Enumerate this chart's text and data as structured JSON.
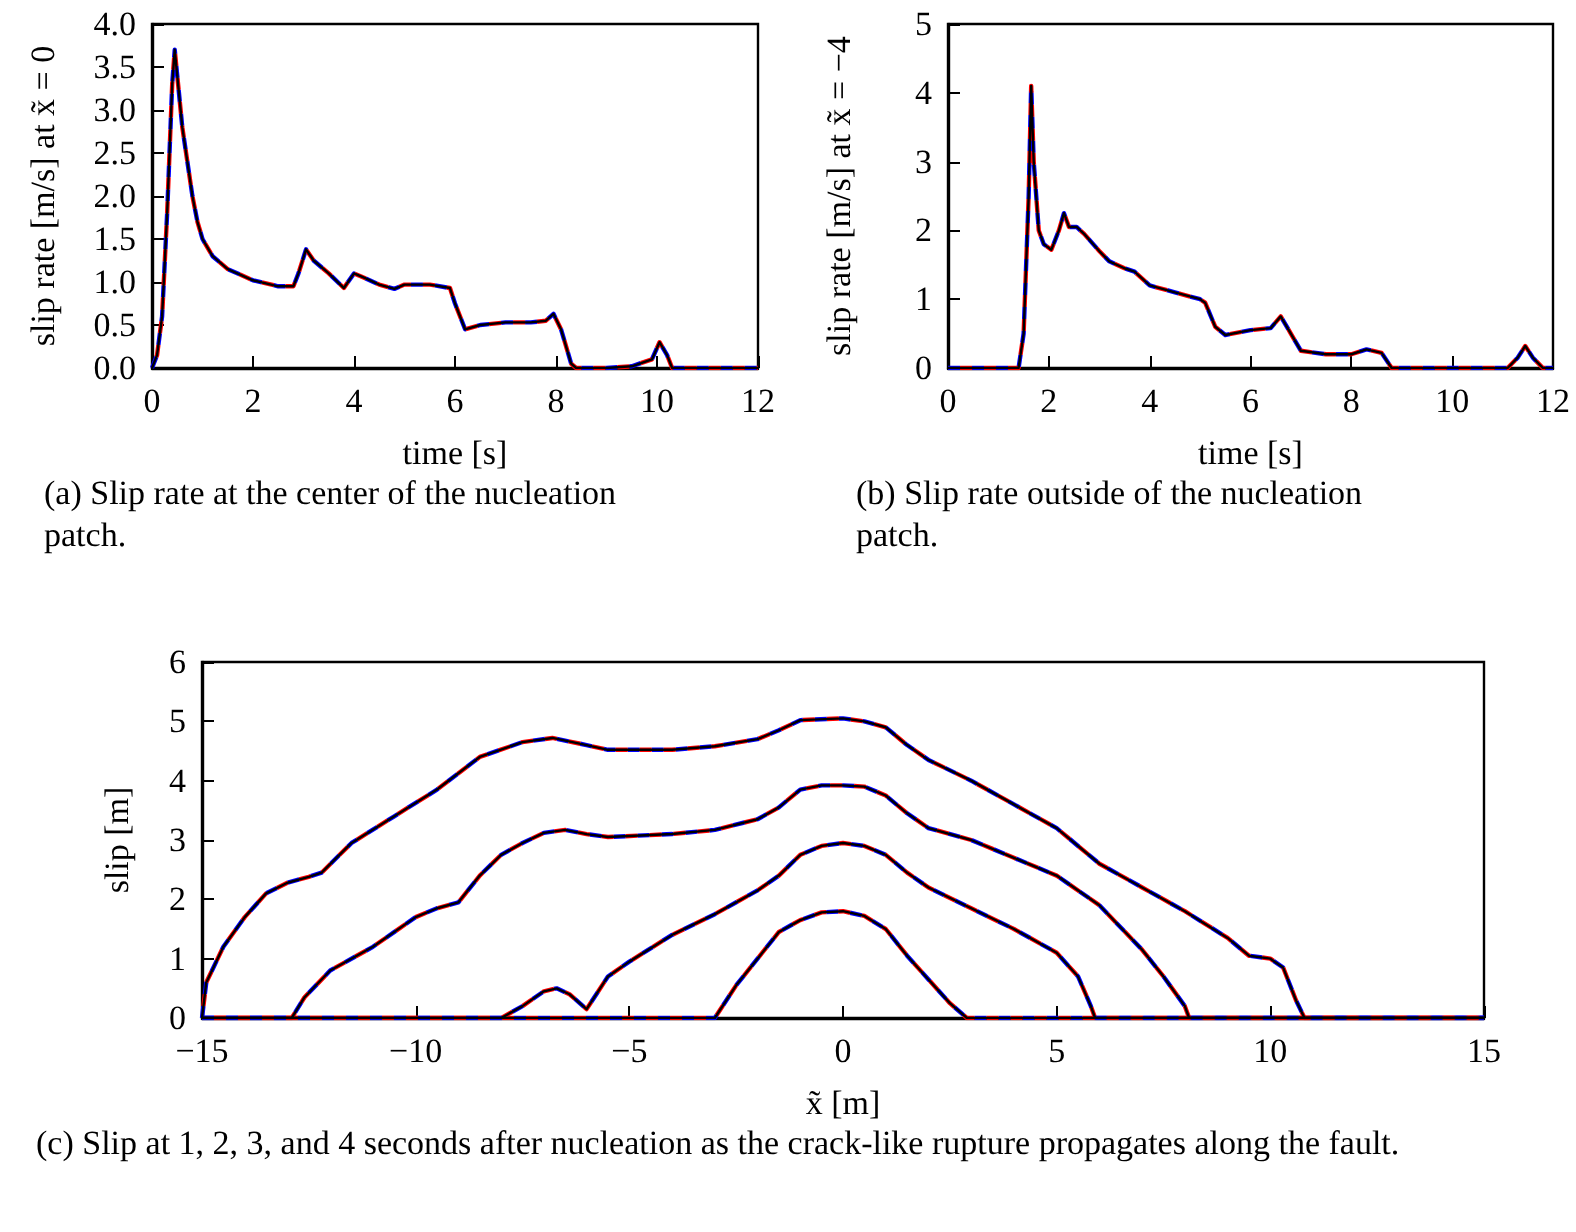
{
  "chart_data": [
    {
      "type": "line",
      "xlabel": "time [s]",
      "ylabel": "slip rate [m/s] at x̃ = 0",
      "annotations": [
        "(a) Slip rate at the center of the nucleation patch."
      ],
      "xlim": [
        0,
        12
      ],
      "xticks": [
        0,
        2,
        4,
        6,
        8,
        10,
        12
      ],
      "ylim": [
        0,
        4
      ],
      "yticks": [
        {
          "value": 0,
          "label": "0.0"
        },
        {
          "value": 0.5,
          "label": "0.5"
        },
        {
          "value": 1,
          "label": "1.0"
        },
        {
          "value": 1.5,
          "label": "1.5"
        },
        {
          "value": 2,
          "label": "2.0"
        },
        {
          "value": 2.5,
          "label": "2.5"
        },
        {
          "value": 3,
          "label": "3.0"
        },
        {
          "value": 3.5,
          "label": "3.5"
        },
        {
          "value": 4,
          "label": "4.0"
        }
      ],
      "grid": false,
      "marker": "none",
      "x": [
        0,
        0.1,
        0.2,
        0.3,
        0.4,
        0.45,
        0.5,
        0.6,
        0.7,
        0.8,
        0.9,
        1.0,
        1.2,
        1.5,
        2.0,
        2.5,
        2.8,
        2.9,
        3.05,
        3.2,
        3.5,
        3.8,
        4.0,
        4.2,
        4.5,
        4.8,
        5.0,
        5.5,
        5.9,
        6.0,
        6.2,
        6.5,
        7.0,
        7.5,
        7.8,
        7.95,
        8.1,
        8.3,
        8.4,
        9.0,
        9.5,
        9.9,
        10.05,
        10.2,
        10.3,
        12
      ],
      "series": [
        {
          "color": "#0000ff",
          "line_style": "dashed",
          "values": [
            0,
            0.15,
            0.6,
            1.8,
            3.3,
            3.7,
            3.4,
            2.8,
            2.4,
            2.0,
            1.7,
            1.5,
            1.3,
            1.15,
            1.02,
            0.95,
            0.95,
            1.1,
            1.38,
            1.25,
            1.1,
            0.93,
            1.1,
            1.05,
            0.97,
            0.92,
            0.97,
            0.97,
            0.93,
            0.75,
            0.45,
            0.5,
            0.53,
            0.53,
            0.55,
            0.63,
            0.45,
            0.05,
            0,
            0,
            0.02,
            0.1,
            0.3,
            0.15,
            0,
            0
          ]
        },
        {
          "color": "#ff0000",
          "line_style": "dashed",
          "values": [
            0,
            0.15,
            0.6,
            1.8,
            3.3,
            3.7,
            3.4,
            2.8,
            2.4,
            2.0,
            1.7,
            1.5,
            1.3,
            1.15,
            1.02,
            0.95,
            0.95,
            1.1,
            1.38,
            1.25,
            1.1,
            0.93,
            1.1,
            1.05,
            0.97,
            0.92,
            0.97,
            0.97,
            0.93,
            0.75,
            0.45,
            0.5,
            0.53,
            0.53,
            0.55,
            0.63,
            0.45,
            0.05,
            0,
            0,
            0.02,
            0.1,
            0.3,
            0.15,
            0,
            0
          ]
        },
        {
          "color": "#000000",
          "line_style": "solid",
          "values": [
            0,
            0.15,
            0.6,
            1.8,
            3.3,
            3.7,
            3.4,
            2.8,
            2.4,
            2.0,
            1.7,
            1.5,
            1.3,
            1.15,
            1.02,
            0.95,
            0.95,
            1.1,
            1.38,
            1.25,
            1.1,
            0.93,
            1.1,
            1.05,
            0.97,
            0.92,
            0.97,
            0.97,
            0.93,
            0.75,
            0.45,
            0.5,
            0.53,
            0.53,
            0.55,
            0.63,
            0.45,
            0.05,
            0,
            0,
            0.02,
            0.1,
            0.3,
            0.15,
            0,
            0
          ]
        }
      ]
    },
    {
      "type": "line",
      "xlabel": "time [s]",
      "ylabel": "slip rate [m/s] at x̃ = −4",
      "annotations": [
        "(b) Slip rate outside of the nucleation patch."
      ],
      "xlim": [
        0,
        12
      ],
      "xticks": [
        0,
        2,
        4,
        6,
        8,
        10,
        12
      ],
      "ylim": [
        0,
        5
      ],
      "yticks": [
        0,
        1,
        2,
        3,
        4,
        5
      ],
      "grid": false,
      "marker": "none",
      "x": [
        0,
        1.4,
        1.5,
        1.6,
        1.65,
        1.7,
        1.8,
        1.9,
        2.05,
        2.2,
        2.3,
        2.4,
        2.55,
        2.7,
        3.0,
        3.2,
        3.5,
        3.7,
        4.0,
        4.5,
        5.0,
        5.1,
        5.3,
        5.5,
        6.0,
        6.4,
        6.6,
        6.8,
        7.0,
        7.5,
        8.0,
        8.3,
        8.6,
        8.8,
        11.1,
        11.3,
        11.45,
        11.6,
        11.8,
        12
      ],
      "series": [
        {
          "color": "#0000ff",
          "line_style": "dashed",
          "values": [
            0,
            0,
            0.5,
            2.5,
            4.1,
            3.0,
            2.0,
            1.8,
            1.72,
            2.0,
            2.25,
            2.05,
            2.05,
            1.95,
            1.7,
            1.55,
            1.45,
            1.4,
            1.2,
            1.1,
            1.0,
            0.95,
            0.6,
            0.48,
            0.55,
            0.58,
            0.75,
            0.5,
            0.25,
            0.2,
            0.2,
            0.27,
            0.22,
            0,
            0,
            0.15,
            0.32,
            0.15,
            0,
            0
          ]
        },
        {
          "color": "#ff0000",
          "line_style": "dashed",
          "values": [
            0,
            0,
            0.5,
            2.5,
            4.1,
            3.0,
            2.0,
            1.8,
            1.72,
            2.0,
            2.25,
            2.05,
            2.05,
            1.95,
            1.7,
            1.55,
            1.45,
            1.4,
            1.2,
            1.1,
            1.0,
            0.95,
            0.6,
            0.48,
            0.55,
            0.58,
            0.75,
            0.5,
            0.25,
            0.2,
            0.2,
            0.27,
            0.22,
            0,
            0,
            0.15,
            0.32,
            0.15,
            0,
            0
          ]
        },
        {
          "color": "#000000",
          "line_style": "solid",
          "values": [
            0,
            0,
            0.5,
            2.5,
            4.1,
            3.0,
            2.0,
            1.8,
            1.72,
            2.0,
            2.25,
            2.05,
            2.05,
            1.95,
            1.7,
            1.55,
            1.45,
            1.4,
            1.2,
            1.1,
            1.0,
            0.95,
            0.6,
            0.48,
            0.55,
            0.58,
            0.75,
            0.5,
            0.25,
            0.2,
            0.2,
            0.27,
            0.22,
            0,
            0,
            0.15,
            0.32,
            0.15,
            0,
            0
          ]
        }
      ]
    },
    {
      "type": "line",
      "xlabel": "x̃ [m]",
      "ylabel": "slip [m]",
      "annotations": [
        "(c) Slip at 1, 2, 3, and 4 seconds after nucleation as the crack-like rupture propagates along the fault."
      ],
      "xlim": [
        -15,
        15
      ],
      "xticks": [
        {
          "value": -15,
          "label": "−15"
        },
        {
          "value": -10,
          "label": "−10"
        },
        {
          "value": -5,
          "label": "−5"
        },
        0,
        5,
        10,
        15
      ],
      "ylim": [
        0,
        6
      ],
      "yticks": [
        0,
        1,
        2,
        3,
        4,
        5,
        6
      ],
      "grid": false,
      "marker": "none",
      "series": [
        {
          "color": "#0000ff",
          "line_style": "dashed",
          "x": [
            -15,
            -14.9,
            -14.5,
            -14,
            -13.5,
            -13,
            -12.5,
            -12.2,
            -11.5,
            -10.5,
            -9.5,
            -8.5,
            -7.5,
            -6.8,
            -6,
            -5.5,
            -4,
            -3,
            -2,
            -1.5,
            -1,
            0,
            0.5,
            1,
            1.5,
            2,
            3,
            4,
            5,
            6,
            7,
            8,
            9,
            9.5,
            10,
            10.3,
            10.6,
            10.8,
            15
          ],
          "values": [
            0,
            0.6,
            1.2,
            1.7,
            2.1,
            2.28,
            2.38,
            2.45,
            2.95,
            3.4,
            3.85,
            4.4,
            4.65,
            4.72,
            4.6,
            4.52,
            4.52,
            4.58,
            4.7,
            4.85,
            5.02,
            5.05,
            5.0,
            4.9,
            4.6,
            4.35,
            4.0,
            3.6,
            3.2,
            2.6,
            2.2,
            1.8,
            1.35,
            1.05,
            1.0,
            0.85,
            0.3,
            0,
            0
          ]
        },
        {
          "color": "#ff0000",
          "line_style": "dashed",
          "x": [
            -15,
            -14.9,
            -14.5,
            -14,
            -13.5,
            -13,
            -12.5,
            -12.2,
            -11.5,
            -10.5,
            -9.5,
            -8.5,
            -7.5,
            -6.8,
            -6,
            -5.5,
            -4,
            -3,
            -2,
            -1.5,
            -1,
            0,
            0.5,
            1,
            1.5,
            2,
            3,
            4,
            5,
            6,
            7,
            8,
            9,
            9.5,
            10,
            10.3,
            10.6,
            10.8,
            15
          ],
          "values": [
            0,
            0.6,
            1.2,
            1.7,
            2.1,
            2.28,
            2.38,
            2.45,
            2.95,
            3.4,
            3.85,
            4.4,
            4.65,
            4.72,
            4.6,
            4.52,
            4.52,
            4.58,
            4.7,
            4.85,
            5.02,
            5.05,
            5.0,
            4.9,
            4.6,
            4.35,
            4.0,
            3.6,
            3.2,
            2.6,
            2.2,
            1.8,
            1.35,
            1.05,
            1.0,
            0.85,
            0.3,
            0,
            0
          ]
        },
        {
          "color": "#000000",
          "line_style": "solid",
          "x": [
            -15,
            -14.9,
            -14.5,
            -14,
            -13.5,
            -13,
            -12.5,
            -12.2,
            -11.5,
            -10.5,
            -9.5,
            -8.5,
            -7.5,
            -6.8,
            -6,
            -5.5,
            -4,
            -3,
            -2,
            -1.5,
            -1,
            0,
            0.5,
            1,
            1.5,
            2,
            3,
            4,
            5,
            6,
            7,
            8,
            9,
            9.5,
            10,
            10.3,
            10.6,
            10.8,
            15
          ],
          "values": [
            0,
            0.6,
            1.2,
            1.7,
            2.1,
            2.28,
            2.38,
            2.45,
            2.95,
            3.4,
            3.85,
            4.4,
            4.65,
            4.72,
            4.6,
            4.52,
            4.52,
            4.58,
            4.7,
            4.85,
            5.02,
            5.05,
            5.0,
            4.9,
            4.6,
            4.35,
            4.0,
            3.6,
            3.2,
            2.6,
            2.2,
            1.8,
            1.35,
            1.05,
            1.0,
            0.85,
            0.3,
            0,
            0
          ]
        },
        {
          "color": "#0000ff",
          "line_style": "dashed",
          "x": [
            -15,
            -12.9,
            -12.6,
            -12,
            -11,
            -10,
            -9.5,
            -9,
            -8.5,
            -8,
            -7.5,
            -7,
            -6.5,
            -6,
            -5.5,
            -4,
            -3,
            -2,
            -1.5,
            -1,
            -0.5,
            0,
            0.5,
            1,
            1.5,
            2,
            3,
            4,
            5,
            6,
            7,
            7.5,
            8,
            8.1,
            15
          ],
          "values": [
            0,
            0,
            0.35,
            0.8,
            1.2,
            1.7,
            1.85,
            1.95,
            2.4,
            2.75,
            2.95,
            3.12,
            3.17,
            3.1,
            3.05,
            3.1,
            3.17,
            3.35,
            3.55,
            3.85,
            3.92,
            3.92,
            3.9,
            3.75,
            3.45,
            3.2,
            3.0,
            2.7,
            2.4,
            1.9,
            1.15,
            0.7,
            0.2,
            0,
            0
          ]
        },
        {
          "color": "#ff0000",
          "line_style": "dashed",
          "x": [
            -15,
            -12.9,
            -12.6,
            -12,
            -11,
            -10,
            -9.5,
            -9,
            -8.5,
            -8,
            -7.5,
            -7,
            -6.5,
            -6,
            -5.5,
            -4,
            -3,
            -2,
            -1.5,
            -1,
            -0.5,
            0,
            0.5,
            1,
            1.5,
            2,
            3,
            4,
            5,
            6,
            7,
            7.5,
            8,
            8.1,
            15
          ],
          "values": [
            0,
            0,
            0.35,
            0.8,
            1.2,
            1.7,
            1.85,
            1.95,
            2.4,
            2.75,
            2.95,
            3.12,
            3.17,
            3.1,
            3.05,
            3.1,
            3.17,
            3.35,
            3.55,
            3.85,
            3.92,
            3.92,
            3.9,
            3.75,
            3.45,
            3.2,
            3.0,
            2.7,
            2.4,
            1.9,
            1.15,
            0.7,
            0.2,
            0,
            0
          ]
        },
        {
          "color": "#000000",
          "line_style": "solid",
          "x": [
            -15,
            -12.9,
            -12.6,
            -12,
            -11,
            -10,
            -9.5,
            -9,
            -8.5,
            -8,
            -7.5,
            -7,
            -6.5,
            -6,
            -5.5,
            -4,
            -3,
            -2,
            -1.5,
            -1,
            -0.5,
            0,
            0.5,
            1,
            1.5,
            2,
            3,
            4,
            5,
            6,
            7,
            7.5,
            8,
            8.1,
            15
          ],
          "values": [
            0,
            0,
            0.35,
            0.8,
            1.2,
            1.7,
            1.85,
            1.95,
            2.4,
            2.75,
            2.95,
            3.12,
            3.17,
            3.1,
            3.05,
            3.1,
            3.17,
            3.35,
            3.55,
            3.85,
            3.92,
            3.92,
            3.9,
            3.75,
            3.45,
            3.2,
            3.0,
            2.7,
            2.4,
            1.9,
            1.15,
            0.7,
            0.2,
            0,
            0
          ]
        },
        {
          "color": "#0000ff",
          "line_style": "dashed",
          "x": [
            -15,
            -8,
            -7.5,
            -7,
            -6.7,
            -6.4,
            -6,
            -5.5,
            -5,
            -4,
            -3,
            -2,
            -1.5,
            -1,
            -0.5,
            0,
            0.5,
            1,
            1.5,
            2,
            3,
            4,
            5,
            5.5,
            5.8,
            5.9,
            15
          ],
          "values": [
            0,
            0,
            0.2,
            0.45,
            0.5,
            0.4,
            0.15,
            0.7,
            0.95,
            1.4,
            1.75,
            2.15,
            2.4,
            2.75,
            2.9,
            2.95,
            2.9,
            2.75,
            2.45,
            2.2,
            1.85,
            1.5,
            1.1,
            0.7,
            0.2,
            0,
            0
          ]
        },
        {
          "color": "#ff0000",
          "line_style": "dashed",
          "x": [
            -15,
            -8,
            -7.5,
            -7,
            -6.7,
            -6.4,
            -6,
            -5.5,
            -5,
            -4,
            -3,
            -2,
            -1.5,
            -1,
            -0.5,
            0,
            0.5,
            1,
            1.5,
            2,
            3,
            4,
            5,
            5.5,
            5.8,
            5.9,
            15
          ],
          "values": [
            0,
            0,
            0.2,
            0.45,
            0.5,
            0.4,
            0.15,
            0.7,
            0.95,
            1.4,
            1.75,
            2.15,
            2.4,
            2.75,
            2.9,
            2.95,
            2.9,
            2.75,
            2.45,
            2.2,
            1.85,
            1.5,
            1.1,
            0.7,
            0.2,
            0,
            0
          ]
        },
        {
          "color": "#000000",
          "line_style": "solid",
          "x": [
            -15,
            -8,
            -7.5,
            -7,
            -6.7,
            -6.4,
            -6,
            -5.5,
            -5,
            -4,
            -3,
            -2,
            -1.5,
            -1,
            -0.5,
            0,
            0.5,
            1,
            1.5,
            2,
            3,
            4,
            5,
            5.5,
            5.8,
            5.9,
            15
          ],
          "values": [
            0,
            0,
            0.2,
            0.45,
            0.5,
            0.4,
            0.15,
            0.7,
            0.95,
            1.4,
            1.75,
            2.15,
            2.4,
            2.75,
            2.9,
            2.95,
            2.9,
            2.75,
            2.45,
            2.2,
            1.85,
            1.5,
            1.1,
            0.7,
            0.2,
            0,
            0
          ]
        },
        {
          "color": "#0000ff",
          "line_style": "dashed",
          "x": [
            -15,
            -3,
            -2.5,
            -2,
            -1.5,
            -1,
            -0.5,
            0,
            0.5,
            1,
            1.5,
            2,
            2.5,
            2.9,
            15
          ],
          "values": [
            0,
            0,
            0.55,
            1.0,
            1.45,
            1.65,
            1.78,
            1.8,
            1.72,
            1.5,
            1.05,
            0.65,
            0.25,
            0,
            0
          ]
        },
        {
          "color": "#ff0000",
          "line_style": "dashed",
          "x": [
            -15,
            -3,
            -2.5,
            -2,
            -1.5,
            -1,
            -0.5,
            0,
            0.5,
            1,
            1.5,
            2,
            2.5,
            2.9,
            15
          ],
          "values": [
            0,
            0,
            0.55,
            1.0,
            1.45,
            1.65,
            1.78,
            1.8,
            1.72,
            1.5,
            1.05,
            0.65,
            0.25,
            0,
            0
          ]
        },
        {
          "color": "#000000",
          "line_style": "solid",
          "x": [
            -15,
            -3,
            -2.5,
            -2,
            -1.5,
            -1,
            -0.5,
            0,
            0.5,
            1,
            1.5,
            2,
            2.5,
            2.9,
            15
          ],
          "values": [
            0,
            0,
            0.55,
            1.0,
            1.45,
            1.65,
            1.78,
            1.8,
            1.72,
            1.5,
            1.05,
            0.65,
            0.25,
            0,
            0
          ]
        }
      ]
    }
  ]
}
